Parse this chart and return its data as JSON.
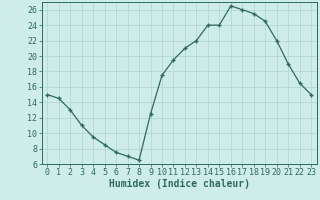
{
  "x": [
    0,
    1,
    2,
    3,
    4,
    5,
    6,
    7,
    8,
    9,
    10,
    11,
    12,
    13,
    14,
    15,
    16,
    17,
    18,
    19,
    20,
    21,
    22,
    23
  ],
  "y": [
    15,
    14.5,
    13,
    11,
    9.5,
    8.5,
    7.5,
    7,
    6.5,
    12.5,
    17.5,
    19.5,
    21,
    22,
    24,
    24,
    26.5,
    26,
    25.5,
    24.5,
    22,
    19,
    16.5,
    15
  ],
  "line_color": "#2d6b5e",
  "marker_color": "#2d6b5e",
  "bg_color": "#cdecea",
  "grid_color": "#afd4d0",
  "xlabel": "Humidex (Indice chaleur)",
  "ylim": [
    6,
    27
  ],
  "xlim": [
    -0.5,
    23.5
  ],
  "yticks": [
    6,
    8,
    10,
    12,
    14,
    16,
    18,
    20,
    22,
    24,
    26
  ],
  "xticks": [
    0,
    1,
    2,
    3,
    4,
    5,
    6,
    7,
    8,
    9,
    10,
    11,
    12,
    13,
    14,
    15,
    16,
    17,
    18,
    19,
    20,
    21,
    22,
    23
  ],
  "xtick_labels": [
    "0",
    "1",
    "2",
    "3",
    "4",
    "5",
    "6",
    "7",
    "8",
    "9",
    "10",
    "11",
    "12",
    "13",
    "14",
    "15",
    "16",
    "17",
    "18",
    "19",
    "20",
    "21",
    "22",
    "23"
  ],
  "xlabel_fontsize": 7,
  "tick_fontsize": 6
}
